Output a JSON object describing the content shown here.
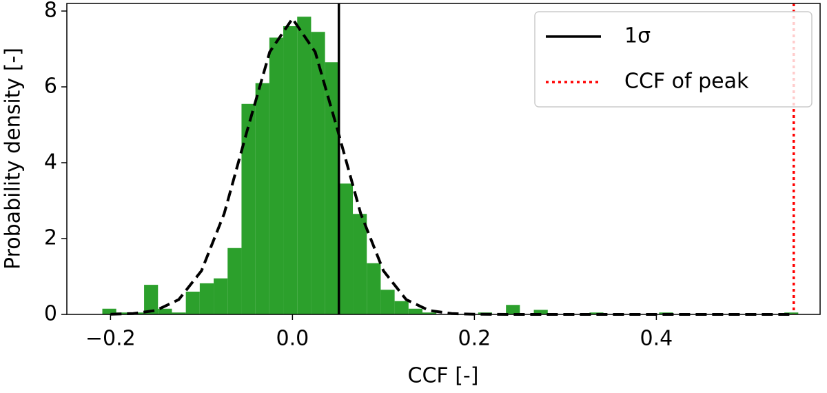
{
  "chart_data": {
    "type": "histogram",
    "xlabel": "CCF [-]",
    "ylabel": "Probability density [-]",
    "bins": [
      -0.209,
      -0.1937,
      -0.1784,
      -0.1631,
      -0.1478,
      -0.1325,
      -0.1172,
      -0.1019,
      -0.0866,
      -0.0713,
      -0.056,
      -0.0407,
      -0.0254,
      -0.0101,
      0.0052,
      0.0205,
      0.0358,
      0.0511,
      0.0664,
      0.0817,
      0.097,
      0.1123,
      0.1276,
      0.1429,
      0.1582,
      0.1735,
      0.1888,
      0.2041,
      0.2194,
      0.2347,
      0.25,
      0.2653,
      0.2806,
      0.2959,
      0.3112,
      0.3265,
      0.3418,
      0.3571,
      0.3724,
      0.3877,
      0.403,
      0.4183,
      0.4336,
      0.4489,
      0.4642,
      0.4795,
      0.4948,
      0.5101,
      0.5254,
      0.5407,
      0.556
    ],
    "values": [
      0.15,
      0.05,
      0.05,
      0.78,
      0.15,
      0.05,
      0.6,
      0.82,
      0.95,
      1.75,
      5.55,
      6.1,
      7.3,
      7.6,
      7.85,
      7.45,
      6.65,
      3.45,
      2.65,
      1.35,
      0.65,
      0.35,
      0.15,
      0.05,
      0,
      0,
      0,
      0.05,
      0,
      0.25,
      0,
      0.12,
      0,
      0,
      0,
      0.05,
      0,
      0,
      0,
      0,
      0.05,
      0,
      0,
      0,
      0,
      0,
      0,
      0,
      0,
      0.05
    ],
    "color": "#2ca02c",
    "fit": {
      "color": "#000000",
      "x": [
        -0.2,
        -0.175,
        -0.15,
        -0.125,
        -0.1,
        -0.075,
        -0.05,
        -0.025,
        0,
        0.025,
        0.05,
        0.075,
        0.1,
        0.125,
        0.15,
        0.175,
        0.2,
        0.25,
        0.3,
        0.4,
        0.5,
        0.55
      ],
      "y": [
        0.004,
        0.022,
        0.105,
        0.39,
        1.15,
        2.66,
        4.83,
        6.92,
        7.8,
        6.92,
        4.83,
        2.66,
        1.15,
        0.39,
        0.105,
        0.022,
        0.004,
        0,
        0,
        0,
        0,
        0
      ]
    },
    "vlines": [
      {
        "name": "1σ",
        "value": 0.051,
        "color": "#000000",
        "style": "solid"
      },
      {
        "name": "CCF of peak",
        "value": 0.551,
        "color": "#ff0000",
        "style": "dotted"
      }
    ],
    "legend": "upper right",
    "xlim": [
      -0.248,
      0.58
    ],
    "ylim": [
      0,
      8.2
    ],
    "xticks": [
      {
        "value": -0.2,
        "label": "−0.2"
      },
      {
        "value": 0,
        "label": "0.0"
      },
      0.2,
      0.4
    ],
    "yticks": [
      0,
      2,
      4,
      6,
      8
    ]
  }
}
